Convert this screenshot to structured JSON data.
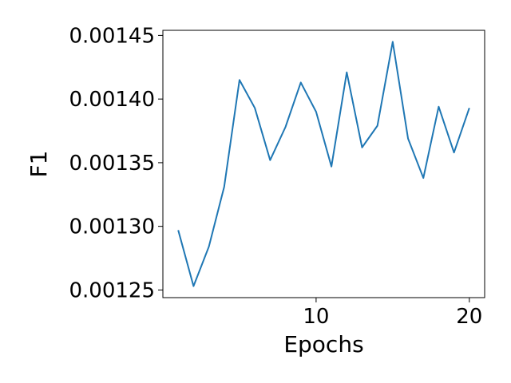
{
  "chart_data": {
    "type": "line",
    "xlabel": "Epochs",
    "ylabel": "F1",
    "xlim": [
      0,
      21
    ],
    "ylim": [
      0.001244,
      0.001454
    ],
    "xticks": [
      10,
      20
    ],
    "xtick_labels": [
      "10",
      "20"
    ],
    "yticks": [
      0.00125,
      0.0013,
      0.00135,
      0.0014,
      0.00145
    ],
    "ytick_labels": [
      "0.00125",
      "0.00130",
      "0.00135",
      "0.00140",
      "0.00145"
    ],
    "grid": false,
    "line_color": "#1f77b4",
    "series": [
      {
        "x": [
          1,
          2,
          3,
          4,
          5,
          6,
          7,
          8,
          9,
          10,
          11,
          12,
          13,
          14,
          15,
          16,
          17,
          18,
          19,
          20
        ],
        "values": [
          0.001297,
          0.001253,
          0.001284,
          0.001331,
          0.001415,
          0.001393,
          0.001352,
          0.001378,
          0.001413,
          0.00139,
          0.001347,
          0.001421,
          0.001362,
          0.001379,
          0.001445,
          0.001369,
          0.001338,
          0.001394,
          0.001358,
          0.001393
        ]
      }
    ]
  }
}
